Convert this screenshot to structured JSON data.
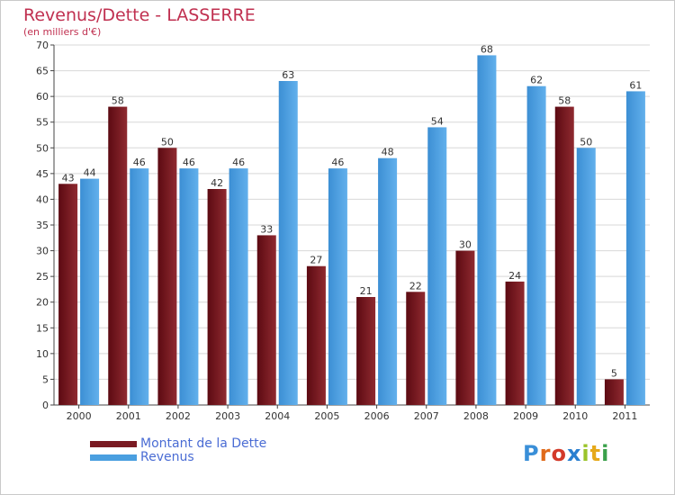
{
  "title": "Revenus/Dette - LASSERRE",
  "subtitle": "(en milliers d'€)",
  "logo": {
    "text": "Proxiti",
    "letter_colors": [
      "#3a8fd8",
      "#e06a1a",
      "#d33a2a",
      "#2a7fd0",
      "#9bc42a",
      "#e6a91a",
      "#3aa04a"
    ]
  },
  "colors": {
    "dette": "#7a1a22",
    "revenus": "#4a9fe0",
    "axis": "#444444",
    "grid": "#d8d8d8",
    "legend_text": "#4a6cd4",
    "title": "#c03050"
  },
  "chart_data": {
    "type": "bar",
    "categories": [
      "2000",
      "2001",
      "2002",
      "2003",
      "2004",
      "2005",
      "2006",
      "2007",
      "2008",
      "2009",
      "2010",
      "2011"
    ],
    "series": [
      {
        "name": "Montant de la Dette",
        "values": [
          43,
          58,
          50,
          42,
          33,
          27,
          21,
          22,
          30,
          24,
          58,
          5
        ]
      },
      {
        "name": "Revenus",
        "values": [
          44,
          46,
          46,
          46,
          63,
          46,
          48,
          54,
          68,
          62,
          50,
          61
        ]
      }
    ],
    "ylim": [
      0,
      70
    ],
    "yticks": [
      0,
      5,
      10,
      15,
      20,
      25,
      30,
      35,
      40,
      45,
      50,
      55,
      60,
      65,
      70
    ],
    "grid": true,
    "data_labels": true,
    "legend_position": "bottom-left"
  }
}
